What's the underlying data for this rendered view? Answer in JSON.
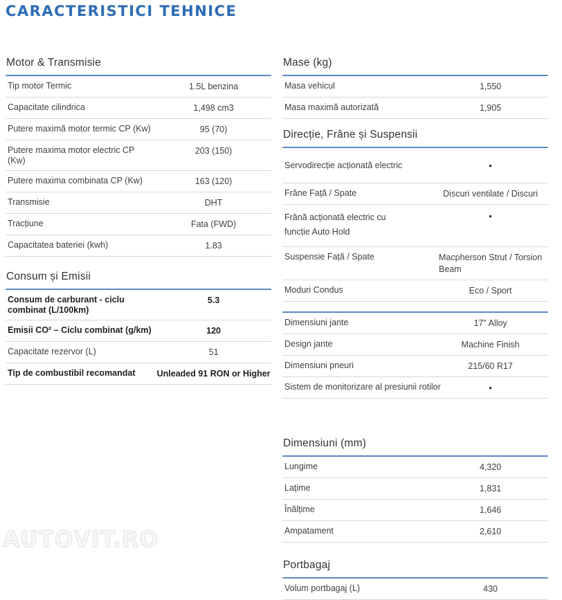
{
  "page": {
    "title": "CARACTERISTICI TEHNICE"
  },
  "watermark": "AUTOVIT.RO",
  "colors": {
    "title_blue": "#2d6cb4",
    "rule_blue": "#5b87c5",
    "row_border": "#d8d8d8",
    "text": "#3f3f3f"
  },
  "sections": {
    "motor": {
      "title": "Motor & Transmisie",
      "rows": [
        {
          "label": "Tip motor Termic",
          "value": "1.5L benzina"
        },
        {
          "label": "Capacitate cilindrica",
          "value": "1,498 cm3"
        },
        {
          "label": "Putere maximă motor termic CP (Kw)",
          "value": "95 (70)"
        },
        {
          "label": "Putere maxima motor electric CP (Kw)",
          "value": "203 (150)"
        },
        {
          "label": "Putere maxima combinata CP (Kw)",
          "value": "163 (120)"
        },
        {
          "label": "Transmisie",
          "value": "DHT"
        },
        {
          "label": "Tracțiune",
          "value": "Fata (FWD)"
        },
        {
          "label": "Capacitatea bateriei (kwh)",
          "value": "1.83"
        }
      ]
    },
    "consum": {
      "title": "Consum și Emisii",
      "rows": [
        {
          "label": "Consum de carburant - ciclu\ncombinat (L/100km)",
          "value": "5.3",
          "bold": true
        },
        {
          "label": "Emisii CO² – Ciclu combinat (g/km)",
          "value": "120",
          "bold": true
        },
        {
          "label": "Capacitate rezervor (L)",
          "value": "51"
        },
        {
          "label": "Tip de combustibil recomandat",
          "value": "Unleaded 91 RON or Higher",
          "bold": true
        }
      ]
    },
    "mase": {
      "title": "Mase (kg)",
      "rows": [
        {
          "label": "Masa vehicul",
          "value": "1,550"
        },
        {
          "label": "Masa maximă autorizată",
          "value": "1,905"
        }
      ]
    },
    "directie": {
      "title": "Direcție, Frâne și Suspensii",
      "rows": [
        {
          "label": "Servodirecție acționată electric",
          "value": "•",
          "bullet": true,
          "tall": true
        },
        {
          "label": "Frâne Față / Spate",
          "value": "Discuri ventilate / Discuri"
        },
        {
          "label": "Frână acționată electric cu\nfuncție Auto Hold",
          "value": "•",
          "bullet": true,
          "wrap2": true
        },
        {
          "label": "Suspensie Față / Spate",
          "value": "Macpherson Strut / Torsion\nBeam"
        },
        {
          "label": "Moduri Condus",
          "value": "Eco / Sport"
        }
      ]
    },
    "wheels": {
      "title": "",
      "rows": [
        {
          "label": "Dimensiuni jante",
          "value": "17\" Alloy"
        },
        {
          "label": "Design jante",
          "value": "Machine Finish"
        },
        {
          "label": "Dimensiuni pneuri",
          "value": "215/60 R17"
        },
        {
          "label": "Sistem de monitorizare al presiunii rotilor",
          "value": "•",
          "bullet": true,
          "nowrap": true
        }
      ]
    },
    "dimensiuni": {
      "title": "Dimensiuni (mm)",
      "rows": [
        {
          "label": "Lungime",
          "value": "4,320"
        },
        {
          "label": "Lațime",
          "value": "1,831"
        },
        {
          "label": "Înălțime",
          "value": "1,646"
        },
        {
          "label": "Ampatament",
          "value": "2,610"
        }
      ]
    },
    "portbagaj": {
      "title": "Portbagaj",
      "rows": [
        {
          "label": "Volum portbagaj (L)",
          "value": "430"
        }
      ]
    }
  }
}
